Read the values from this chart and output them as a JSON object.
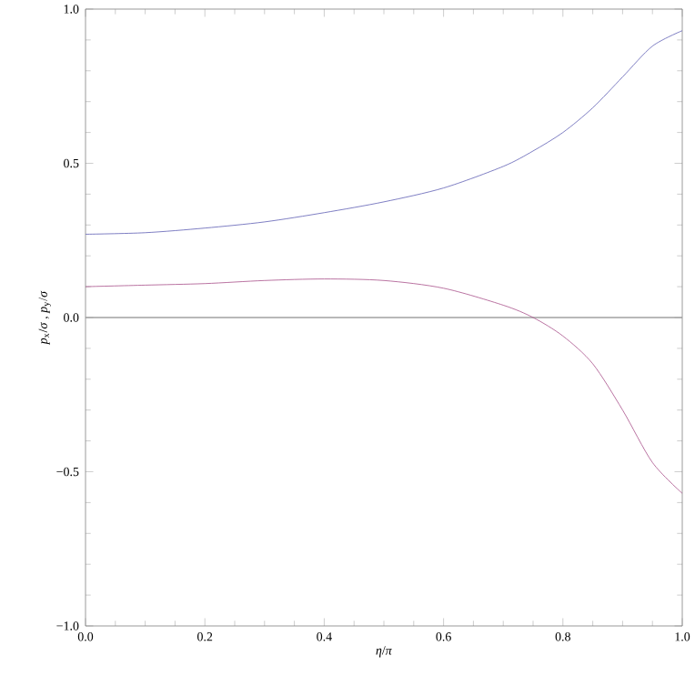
{
  "chart_data": {
    "type": "line",
    "xlabel": "*η*/*π*",
    "ylabel": "*p*$_{x}$/*σ* , *p*$_{y}$/*σ*",
    "xlim": [
      0,
      1
    ],
    "ylim": [
      -1,
      1
    ],
    "xticks": [
      {
        "value": 0,
        "label": "0.0"
      },
      {
        "value": 0.2,
        "label": "0.2"
      },
      {
        "value": 0.4,
        "label": "0.4"
      },
      {
        "value": 0.6,
        "label": "0.6"
      },
      {
        "value": 0.8,
        "label": "0.8"
      },
      {
        "value": 1,
        "label": "1.0"
      }
    ],
    "yticks": [
      {
        "value": -1,
        "label": "−1.0"
      },
      {
        "value": -0.5,
        "label": "−0.5"
      },
      {
        "value": 0,
        "label": "0.0"
      },
      {
        "value": 0.5,
        "label": "0.5"
      },
      {
        "value": 1,
        "label": "1.0"
      }
    ],
    "x": [
      0,
      0.1,
      0.2,
      0.3,
      0.4,
      0.5,
      0.6,
      0.7,
      0.75,
      0.8,
      0.85,
      0.9,
      0.95,
      1.0
    ],
    "series": [
      {
        "color": "#5e5eb4",
        "values": [
          0.27,
          0.275,
          0.29,
          0.31,
          0.34,
          0.375,
          0.42,
          0.49,
          0.54,
          0.6,
          0.68,
          0.78,
          0.88,
          0.93
        ]
      },
      {
        "color": "#a8508a",
        "values": [
          0.1,
          0.105,
          0.11,
          0.12,
          0.125,
          0.12,
          0.095,
          0.04,
          0.0,
          -0.06,
          -0.15,
          -0.3,
          -0.47,
          -0.57
        ]
      }
    ],
    "ref_lines": [
      {
        "axis": "y",
        "value": 0,
        "color": "#a0a0a0"
      }
    ],
    "grid": false,
    "marker": "none",
    "line_style": "solid"
  }
}
